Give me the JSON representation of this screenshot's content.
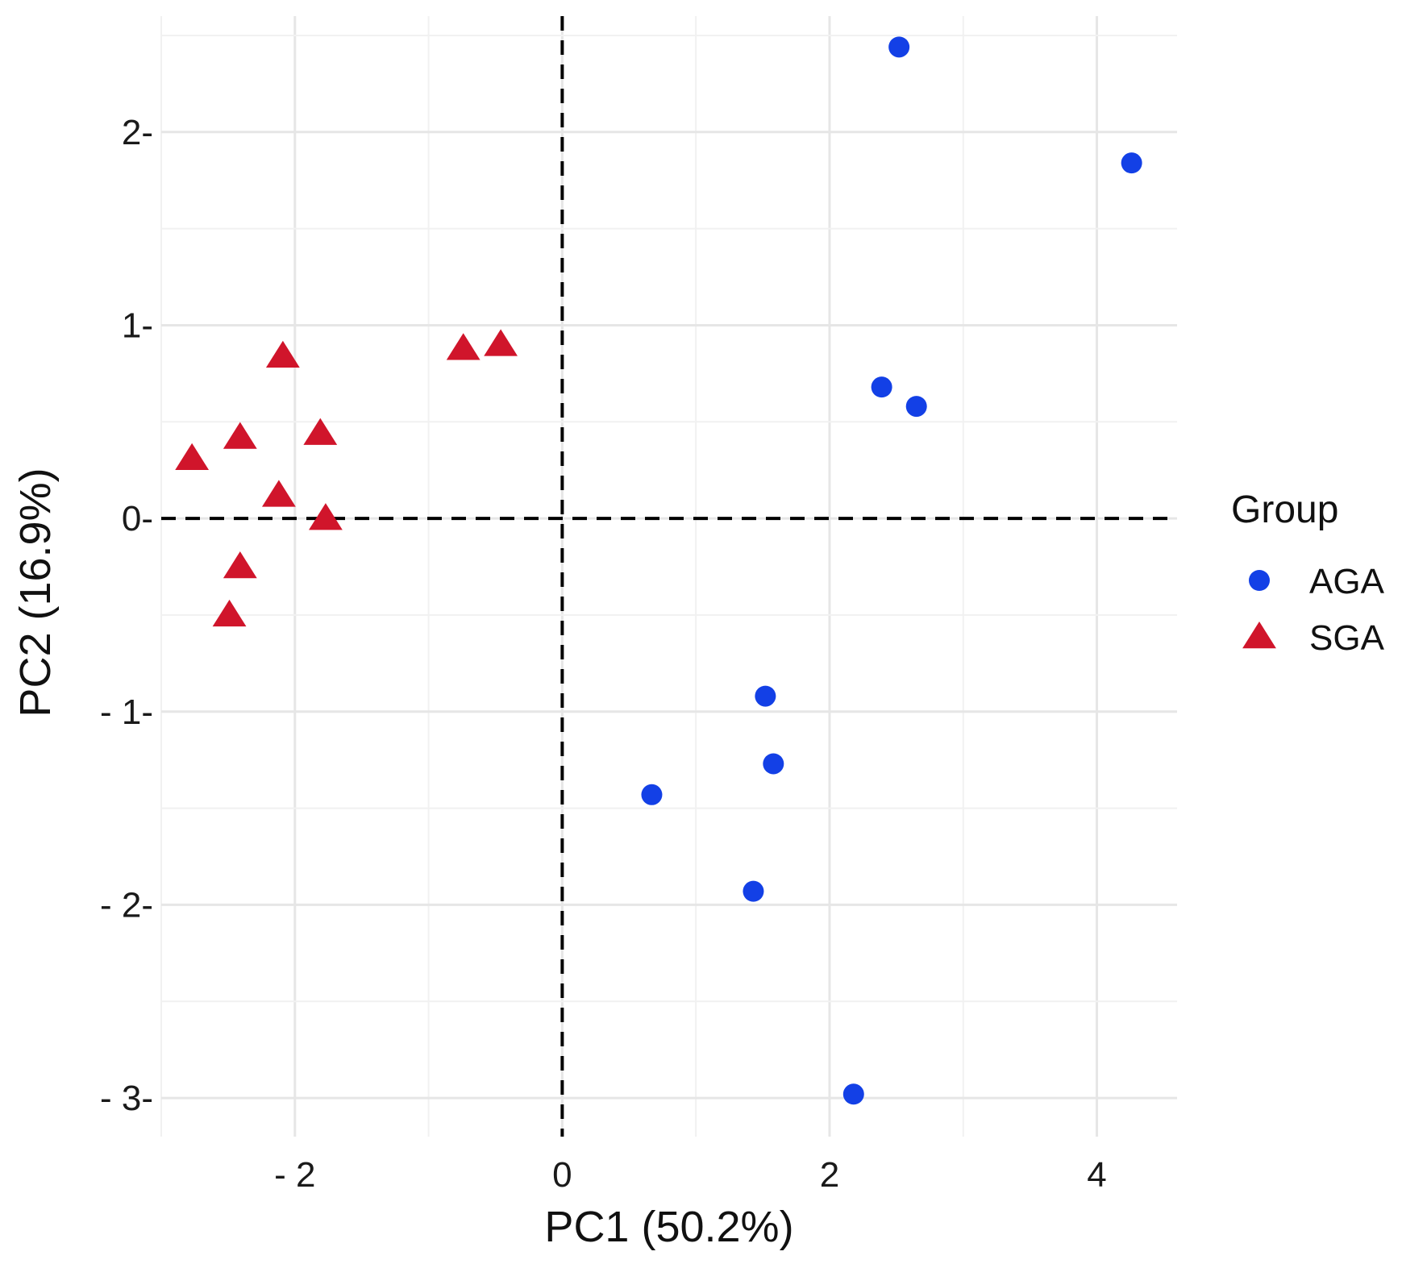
{
  "chart_data": {
    "type": "scatter",
    "title": "",
    "xlabel": "PC1 (50.2%)",
    "ylabel": "PC2 (16.9%)",
    "xlim": [
      -3.0,
      4.6
    ],
    "ylim": [
      -3.2,
      2.6
    ],
    "x_ticks": [
      -2,
      0,
      2,
      4
    ],
    "x_tick_labels": [
      "- 2",
      "0",
      "2",
      "4"
    ],
    "y_ticks": [
      -3,
      -2,
      -1,
      0,
      1,
      2
    ],
    "y_tick_labels": [
      "- 3-",
      "- 2-",
      "- 1-",
      "0-",
      "1-",
      "2-"
    ],
    "reference_lines": {
      "x": 0,
      "y": 0,
      "style": "dashed"
    },
    "grid": true,
    "legend": {
      "title": "Group",
      "position": "right"
    },
    "series": [
      {
        "name": "AGA",
        "marker": "circle",
        "color": "#1340e6",
        "points": [
          {
            "x": 2.52,
            "y": 2.44
          },
          {
            "x": 4.26,
            "y": 1.84
          },
          {
            "x": 2.39,
            "y": 0.68
          },
          {
            "x": 2.65,
            "y": 0.58
          },
          {
            "x": 1.52,
            "y": -0.92
          },
          {
            "x": 1.58,
            "y": -1.27
          },
          {
            "x": 0.67,
            "y": -1.43
          },
          {
            "x": 1.43,
            "y": -1.93
          },
          {
            "x": 2.18,
            "y": -2.98
          }
        ]
      },
      {
        "name": "SGA",
        "marker": "triangle",
        "color": "#d0152b",
        "points": [
          {
            "x": -2.09,
            "y": 0.84
          },
          {
            "x": -0.74,
            "y": 0.88
          },
          {
            "x": -0.46,
            "y": 0.9
          },
          {
            "x": -2.77,
            "y": 0.31
          },
          {
            "x": -2.41,
            "y": 0.42
          },
          {
            "x": -1.81,
            "y": 0.44
          },
          {
            "x": -2.12,
            "y": 0.12
          },
          {
            "x": -1.77,
            "y": 0.0
          },
          {
            "x": -2.41,
            "y": -0.25
          },
          {
            "x": -2.49,
            "y": -0.5
          }
        ]
      }
    ]
  }
}
